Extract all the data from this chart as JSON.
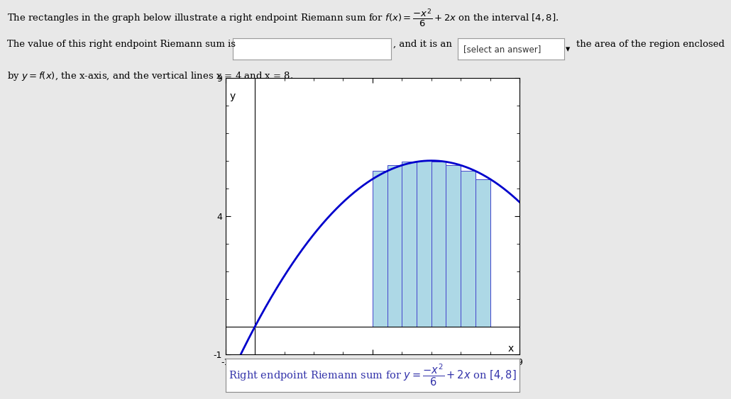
{
  "xlabel": "x",
  "ylabel": "y",
  "xlim": [
    -1,
    9
  ],
  "ylim": [
    -1,
    9
  ],
  "xticks_major": [
    -1,
    4,
    9
  ],
  "yticks_major": [
    -1,
    4,
    9
  ],
  "xticks_minor": [
    -1,
    0,
    1,
    2,
    3,
    4,
    5,
    6,
    7,
    8,
    9
  ],
  "yticks_minor": [
    -1,
    0,
    1,
    2,
    3,
    4,
    5,
    6,
    7,
    8,
    9
  ],
  "interval_a": 4,
  "interval_b": 8,
  "n_rectangles": 8,
  "curve_color": "#0000CC",
  "rect_facecolor": "#ADD8E6",
  "rect_edgecolor": "#4444CC",
  "background_color": "#E8E8E8",
  "plot_bg_color": "#FFFFFF",
  "fig_width": 10.36,
  "fig_height": 5.7,
  "caption_color": "#3333AA"
}
